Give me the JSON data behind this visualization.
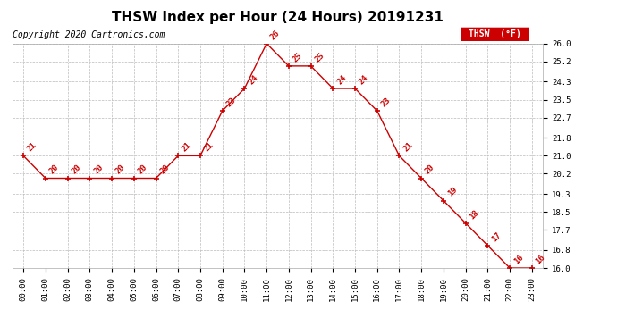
{
  "title": "THSW Index per Hour (24 Hours) 20191231",
  "copyright": "Copyright 2020 Cartronics.com",
  "legend_label": "THSW  (°F)",
  "hours": [
    0,
    1,
    2,
    3,
    4,
    5,
    6,
    7,
    8,
    9,
    10,
    11,
    12,
    13,
    14,
    15,
    16,
    17,
    18,
    19,
    20,
    21,
    22,
    23
  ],
  "values": [
    21,
    20,
    20,
    20,
    20,
    20,
    20,
    21,
    21,
    23,
    24,
    26,
    25,
    25,
    24,
    24,
    23,
    21,
    20,
    19,
    18,
    17,
    16,
    16
  ],
  "xlabels": [
    "00:00",
    "01:00",
    "02:00",
    "03:00",
    "04:00",
    "05:00",
    "06:00",
    "07:00",
    "08:00",
    "09:00",
    "10:00",
    "11:00",
    "12:00",
    "13:00",
    "14:00",
    "15:00",
    "16:00",
    "17:00",
    "18:00",
    "19:00",
    "20:00",
    "21:00",
    "22:00",
    "23:00"
  ],
  "ylim": [
    16.0,
    26.0
  ],
  "yticks": [
    16.0,
    16.8,
    17.7,
    18.5,
    19.3,
    20.2,
    21.0,
    21.8,
    22.7,
    23.5,
    24.3,
    25.2,
    26.0
  ],
  "line_color": "#cc0000",
  "marker_color": "#cc0000",
  "label_color": "#cc0000",
  "grid_color": "#bbbbbb",
  "bg_color": "#ffffff",
  "legend_bg": "#cc0000",
  "legend_text_color": "#ffffff",
  "title_fontsize": 11,
  "copyright_fontsize": 7,
  "label_fontsize": 6.5,
  "tick_fontsize": 6.5,
  "legend_fontsize": 7
}
